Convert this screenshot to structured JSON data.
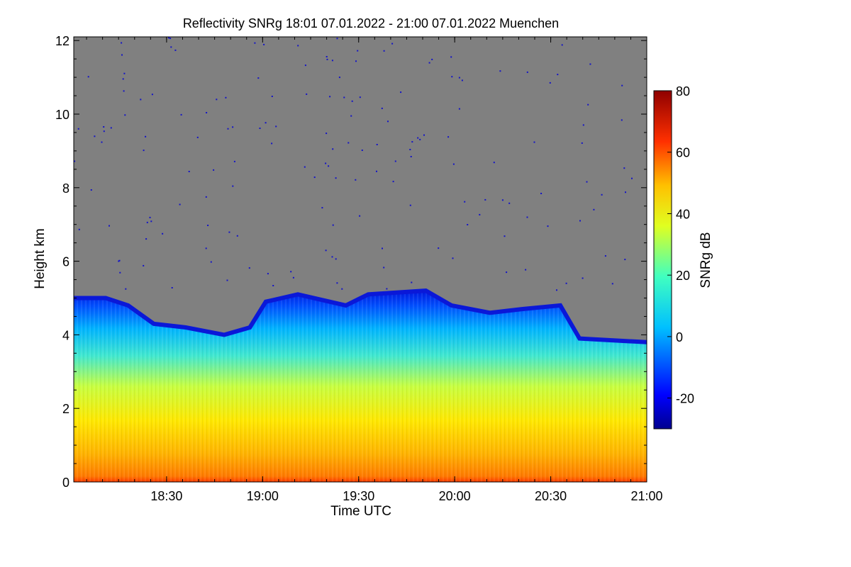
{
  "chart_data": {
    "type": "heatmap",
    "title": "Reflectivity SNRg   18:01 07.01.2022 - 21:00 07.01.2022 Muenchen",
    "xlabel": "Time UTC",
    "ylabel": "Height km",
    "colorbar_label": "SNRg dB",
    "x_range_minutes": [
      0,
      179
    ],
    "ylim": [
      0,
      12.1
    ],
    "x_ticks": [
      {
        "label": "18:30",
        "minutes": 29
      },
      {
        "label": "19:00",
        "minutes": 59
      },
      {
        "label": "19:30",
        "minutes": 89
      },
      {
        "label": "20:00",
        "minutes": 119
      },
      {
        "label": "20:30",
        "minutes": 149
      },
      {
        "label": "21:00",
        "minutes": 179
      }
    ],
    "y_ticks": [
      0,
      2,
      4,
      6,
      8,
      10,
      12
    ],
    "colorbar": {
      "range": [
        -30,
        80
      ],
      "ticks": [
        -20,
        0,
        20,
        40,
        60,
        80
      ],
      "colormap": "jet",
      "no_signal_color": "#808080"
    },
    "cloud_top_km": [
      {
        "minutes": 0,
        "top": 5.0
      },
      {
        "minutes": 10,
        "top": 5.0
      },
      {
        "minutes": 17,
        "top": 4.8
      },
      {
        "minutes": 25,
        "top": 4.3
      },
      {
        "minutes": 35,
        "top": 4.2
      },
      {
        "minutes": 47,
        "top": 4.0
      },
      {
        "minutes": 55,
        "top": 4.2
      },
      {
        "minutes": 60,
        "top": 4.9
      },
      {
        "minutes": 70,
        "top": 5.1
      },
      {
        "minutes": 85,
        "top": 4.8
      },
      {
        "minutes": 92,
        "top": 5.1
      },
      {
        "minutes": 110,
        "top": 5.2
      },
      {
        "minutes": 118,
        "top": 4.8
      },
      {
        "minutes": 130,
        "top": 4.6
      },
      {
        "minutes": 140,
        "top": 4.7
      },
      {
        "minutes": 152,
        "top": 4.8
      },
      {
        "minutes": 158,
        "top": 3.9
      },
      {
        "minutes": 179,
        "top": 3.8
      }
    ]
  }
}
